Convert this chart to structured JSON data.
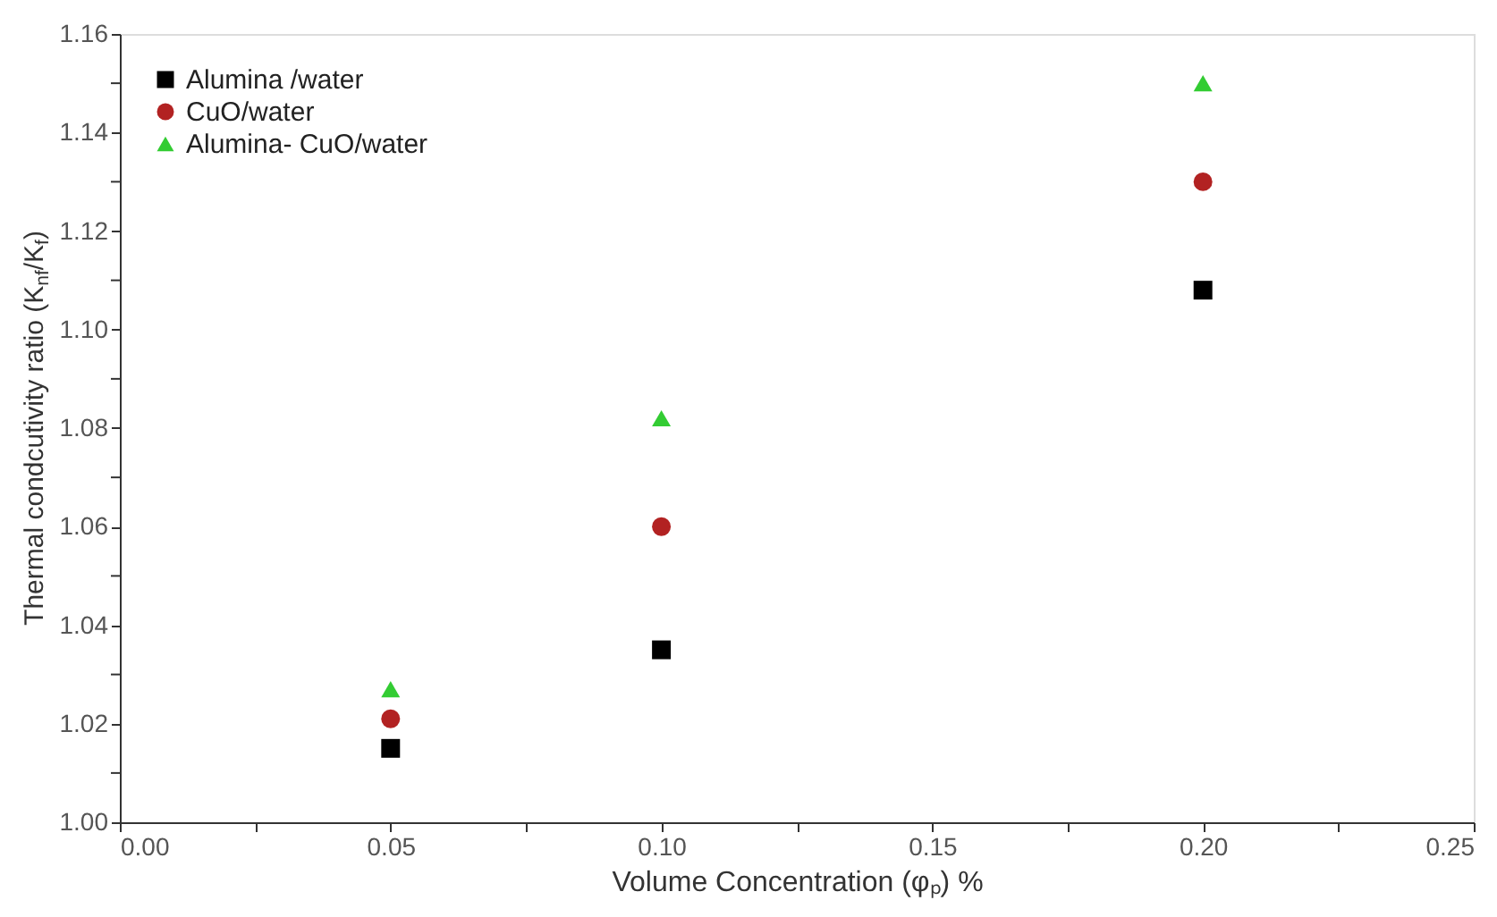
{
  "chart_data": {
    "type": "scatter",
    "xlabel": "Volume Concentration (φₚ) %",
    "ylabel": "Thermal condcutivity ratio (K$_{nf}$/K$_{f}$)",
    "x": [
      0.05,
      0.1,
      0.2
    ],
    "series": [
      {
        "name": "Alumina /water",
        "color": "#000000",
        "marker": "square",
        "values": [
          1.015,
          1.035,
          1.108
        ]
      },
      {
        "name": "CuO/water",
        "color": "#b22222",
        "marker": "circle",
        "values": [
          1.021,
          1.06,
          1.13
        ]
      },
      {
        "name": "Alumina- CuO/water",
        "color": "#33cc33",
        "marker": "triangle",
        "values": [
          1.027,
          1.082,
          1.15
        ]
      }
    ],
    "xlim": [
      0.0,
      0.25
    ],
    "xticks": [
      {
        "value": 0.0,
        "label": "0.00"
      },
      {
        "value": 0.025,
        "label": null
      },
      {
        "value": 0.05,
        "label": "0.05"
      },
      {
        "value": 0.075,
        "label": null
      },
      {
        "value": 0.1,
        "label": "0.10"
      },
      {
        "value": 0.125,
        "label": null
      },
      {
        "value": 0.15,
        "label": "0.15"
      },
      {
        "value": 0.175,
        "label": null
      },
      {
        "value": 0.2,
        "label": "0.20"
      },
      {
        "value": 0.225,
        "label": null
      },
      {
        "value": 0.25,
        "label": "0.25"
      }
    ],
    "ylim": [
      1.0,
      1.16
    ],
    "yticks": [
      {
        "value": 1.0,
        "label": "1.00"
      },
      {
        "value": 1.01,
        "label": null
      },
      {
        "value": 1.02,
        "label": "1.02"
      },
      {
        "value": 1.03,
        "label": null
      },
      {
        "value": 1.04,
        "label": "1.04"
      },
      {
        "value": 1.05,
        "label": null
      },
      {
        "value": 1.06,
        "label": "1.06"
      },
      {
        "value": 1.07,
        "label": null
      },
      {
        "value": 1.08,
        "label": "1.08"
      },
      {
        "value": 1.09,
        "label": null
      },
      {
        "value": 1.1,
        "label": "1.10"
      },
      {
        "value": 1.11,
        "label": null
      },
      {
        "value": 1.12,
        "label": "1.12"
      },
      {
        "value": 1.13,
        "label": null
      },
      {
        "value": 1.14,
        "label": "1.14"
      },
      {
        "value": 1.15,
        "label": null
      },
      {
        "value": 1.16,
        "label": "1.16"
      }
    ],
    "grid": false,
    "legend": "top left"
  }
}
